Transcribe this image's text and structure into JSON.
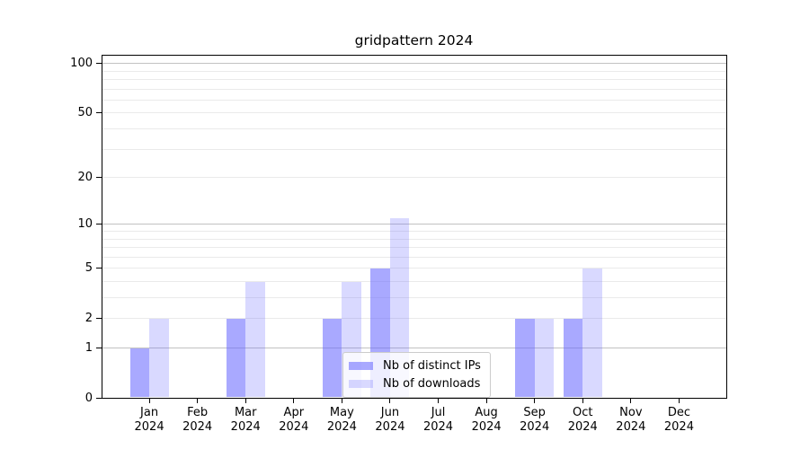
{
  "chart_data": {
    "type": "bar",
    "title": "gridpattern 2024",
    "categories": [
      "Jan",
      "Feb",
      "Mar",
      "Apr",
      "May",
      "Jun",
      "Jul",
      "Aug",
      "Sep",
      "Oct",
      "Nov",
      "Dec"
    ],
    "category_year": "2024",
    "series": [
      {
        "name": "Nb of distinct IPs",
        "fill": "rgba(102,102,255,0.56)",
        "values": [
          1,
          0,
          2,
          0,
          2,
          5,
          0,
          0,
          2,
          2,
          0,
          0
        ]
      },
      {
        "name": "Nb of downloads",
        "fill": "rgba(102,102,255,0.25)",
        "values": [
          2,
          0,
          4,
          0,
          4,
          11,
          0,
          0,
          2,
          5,
          0,
          0
        ]
      }
    ],
    "yscale": "log1p",
    "ylim": [
      0,
      113
    ],
    "yticks": [
      0,
      1,
      2,
      5,
      10,
      20,
      50,
      100
    ],
    "grid": {
      "emphasized_values": [
        1,
        10,
        100
      ],
      "light_values": [
        2,
        3,
        4,
        5,
        6,
        7,
        8,
        9,
        20,
        30,
        40,
        50,
        60,
        70,
        80,
        90
      ],
      "emphasized_color": "#c2c2c2",
      "light_color": "#eaeaea"
    },
    "legend_position": "lower center",
    "axis_color": "#000000",
    "background": "#ffffff"
  }
}
